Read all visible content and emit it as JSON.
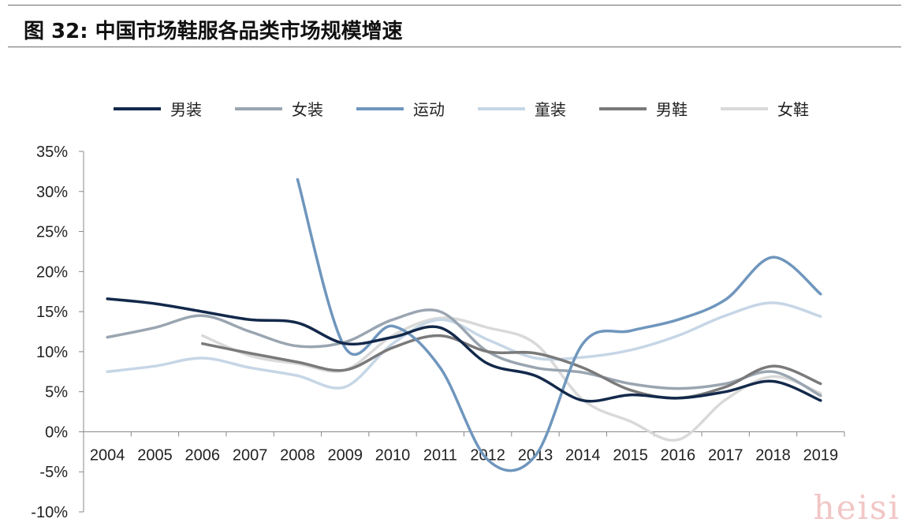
{
  "title": "图 32: 中国市场鞋服各品类市场规模增速",
  "watermark": "heisi",
  "chart_data": {
    "type": "line",
    "categories": [
      "2004",
      "2005",
      "2006",
      "2007",
      "2008",
      "2009",
      "2010",
      "2011",
      "2012",
      "2013",
      "2014",
      "2015",
      "2016",
      "2017",
      "2018",
      "2019"
    ],
    "ylim": [
      -10,
      35
    ],
    "yticks": [
      -10,
      -5,
      0,
      5,
      10,
      15,
      20,
      25,
      30,
      35
    ],
    "ytick_labels": [
      "-10%",
      "-5%",
      "0%",
      "5%",
      "10%",
      "15%",
      "20%",
      "25%",
      "30%",
      "35%"
    ],
    "legend_position": "top",
    "grid": false,
    "series": [
      {
        "name": "男装",
        "color": "#13294b",
        "values": [
          16.6,
          16.0,
          15.0,
          14.0,
          13.6,
          11.0,
          11.8,
          13.0,
          8.5,
          7.0,
          3.9,
          4.6,
          4.2,
          5.0,
          6.3,
          3.9
        ]
      },
      {
        "name": "女装",
        "color": "#9aa5b1",
        "values": [
          11.8,
          13.0,
          14.5,
          12.5,
          10.7,
          11.2,
          14.0,
          15.0,
          10.0,
          8.0,
          7.4,
          6.0,
          5.4,
          6.0,
          7.5,
          4.5
        ]
      },
      {
        "name": "运动",
        "color": "#6f96bd",
        "values": [
          null,
          null,
          null,
          null,
          31.5,
          10.5,
          13.2,
          8.0,
          -3.5,
          -3.0,
          11.0,
          12.6,
          14.0,
          16.5,
          21.8,
          17.2
        ]
      },
      {
        "name": "童装",
        "color": "#c6d6e6",
        "values": [
          7.5,
          8.2,
          9.2,
          8.0,
          7.0,
          5.6,
          11.0,
          14.0,
          11.5,
          9.2,
          9.3,
          10.2,
          12.0,
          14.5,
          16.1,
          14.4
        ]
      },
      {
        "name": "男鞋",
        "color": "#7a7a7a",
        "values": [
          null,
          null,
          11.0,
          9.8,
          8.7,
          7.7,
          10.5,
          12.0,
          10.0,
          9.8,
          8.0,
          5.2,
          4.2,
          5.6,
          8.2,
          6.0
        ]
      },
      {
        "name": "女鞋",
        "color": "#d9d9d9",
        "values": [
          null,
          null,
          12.0,
          9.5,
          8.5,
          7.7,
          12.0,
          14.2,
          13.0,
          11.0,
          4.0,
          1.3,
          -1.0,
          4.0,
          6.9,
          4.8
        ]
      }
    ]
  }
}
